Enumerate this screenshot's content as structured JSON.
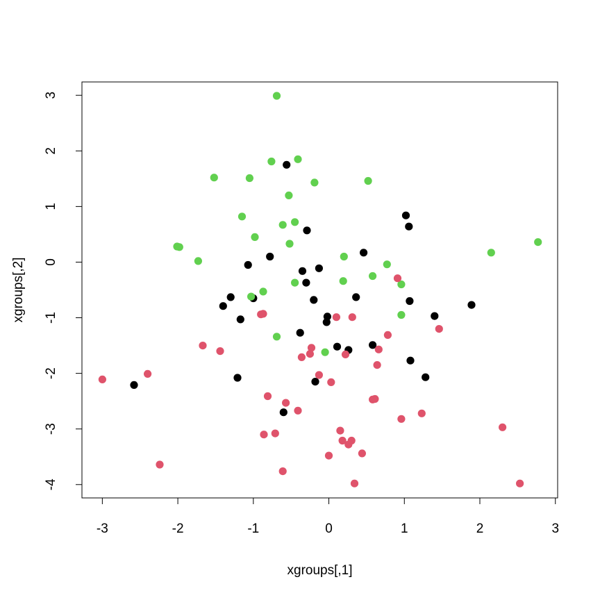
{
  "chart_data": {
    "type": "scatter",
    "title": "",
    "xlabel": "xgroups[,1]",
    "ylabel": "xgroups[,2]",
    "xlim": [
      -3.27,
      3.03
    ],
    "ylim": [
      -4.24,
      3.24
    ],
    "x_ticks": [
      -3,
      -2,
      -1,
      0,
      1,
      2,
      3
    ],
    "y_ticks": [
      -4,
      -3,
      -2,
      -1,
      0,
      1,
      2,
      3
    ],
    "grid": false,
    "legend": "none",
    "series": [
      {
        "color": "#000000",
        "points": [
          [
            -0.56,
            1.75
          ],
          [
            1.02,
            0.84
          ],
          [
            1.06,
            0.64
          ],
          [
            -0.29,
            0.57
          ],
          [
            0.46,
            0.17
          ],
          [
            -0.78,
            0.1
          ],
          [
            -1.07,
            -0.05
          ],
          [
            -0.13,
            -0.11
          ],
          [
            -0.35,
            -0.16
          ],
          [
            -0.3,
            -0.37
          ],
          [
            0.36,
            -0.63
          ],
          [
            -0.2,
            -0.68
          ],
          [
            -1.3,
            -0.63
          ],
          [
            -1.4,
            -0.79
          ],
          [
            -1.0,
            -0.65
          ],
          [
            1.07,
            -0.7
          ],
          [
            1.89,
            -0.77
          ],
          [
            1.4,
            -0.97
          ],
          [
            -0.02,
            -0.98
          ],
          [
            -0.03,
            -1.08
          ],
          [
            -1.17,
            -1.03
          ],
          [
            -0.38,
            -1.27
          ],
          [
            0.11,
            -1.52
          ],
          [
            0.26,
            -1.58
          ],
          [
            0.58,
            -1.49
          ],
          [
            1.08,
            -1.77
          ],
          [
            1.28,
            -2.07
          ],
          [
            -1.21,
            -2.08
          ],
          [
            -0.18,
            -2.15
          ],
          [
            -2.58,
            -2.21
          ],
          [
            -0.6,
            -2.7
          ]
        ]
      },
      {
        "color": "#61d04f",
        "points": [
          [
            -0.69,
            2.99
          ],
          [
            -0.41,
            1.85
          ],
          [
            -0.76,
            1.81
          ],
          [
            -1.52,
            1.52
          ],
          [
            -1.05,
            1.51
          ],
          [
            -0.19,
            1.43
          ],
          [
            0.52,
            1.46
          ],
          [
            -0.53,
            1.2
          ],
          [
            -1.15,
            0.82
          ],
          [
            -0.45,
            0.72
          ],
          [
            -0.61,
            0.67
          ],
          [
            -0.98,
            0.45
          ],
          [
            -0.52,
            0.33
          ],
          [
            -2.01,
            0.28
          ],
          [
            -1.98,
            0.27
          ],
          [
            -1.73,
            0.02
          ],
          [
            2.15,
            0.17
          ],
          [
            2.77,
            0.36
          ],
          [
            0.2,
            0.1
          ],
          [
            0.77,
            -0.04
          ],
          [
            0.58,
            -0.25
          ],
          [
            0.19,
            -0.34
          ],
          [
            0.96,
            -0.4
          ],
          [
            -0.45,
            -0.37
          ],
          [
            -0.87,
            -0.53
          ],
          [
            -1.03,
            -0.62
          ],
          [
            0.96,
            -0.95
          ],
          [
            -0.69,
            -1.34
          ],
          [
            -0.05,
            -1.62
          ]
        ]
      },
      {
        "color": "#df536b",
        "points": [
          [
            0.91,
            -0.29
          ],
          [
            1.46,
            -1.2
          ],
          [
            -0.9,
            -0.94
          ],
          [
            -0.87,
            -0.93
          ],
          [
            0.1,
            -0.99
          ],
          [
            0.31,
            -0.99
          ],
          [
            0.78,
            -1.31
          ],
          [
            -1.67,
            -1.5
          ],
          [
            -1.44,
            -1.6
          ],
          [
            -0.23,
            -1.54
          ],
          [
            -0.25,
            -1.65
          ],
          [
            -0.36,
            -1.71
          ],
          [
            0.22,
            -1.66
          ],
          [
            0.66,
            -1.57
          ],
          [
            0.64,
            -1.85
          ],
          [
            -2.4,
            -2.01
          ],
          [
            -0.13,
            -2.03
          ],
          [
            0.03,
            -2.16
          ],
          [
            -3.0,
            -2.11
          ],
          [
            -0.81,
            -2.41
          ],
          [
            -0.57,
            -2.53
          ],
          [
            0.58,
            -2.47
          ],
          [
            0.61,
            -2.46
          ],
          [
            -0.41,
            -2.67
          ],
          [
            1.23,
            -2.72
          ],
          [
            0.96,
            -2.82
          ],
          [
            2.3,
            -2.97
          ],
          [
            0.15,
            -3.03
          ],
          [
            -0.86,
            -3.1
          ],
          [
            -0.71,
            -3.08
          ],
          [
            0.18,
            -3.21
          ],
          [
            0.3,
            -3.21
          ],
          [
            0.26,
            -3.28
          ],
          [
            0.44,
            -3.44
          ],
          [
            0.0,
            -3.48
          ],
          [
            -2.24,
            -3.64
          ],
          [
            -0.61,
            -3.76
          ],
          [
            0.34,
            -3.98
          ],
          [
            2.53,
            -3.98
          ]
        ]
      }
    ]
  }
}
